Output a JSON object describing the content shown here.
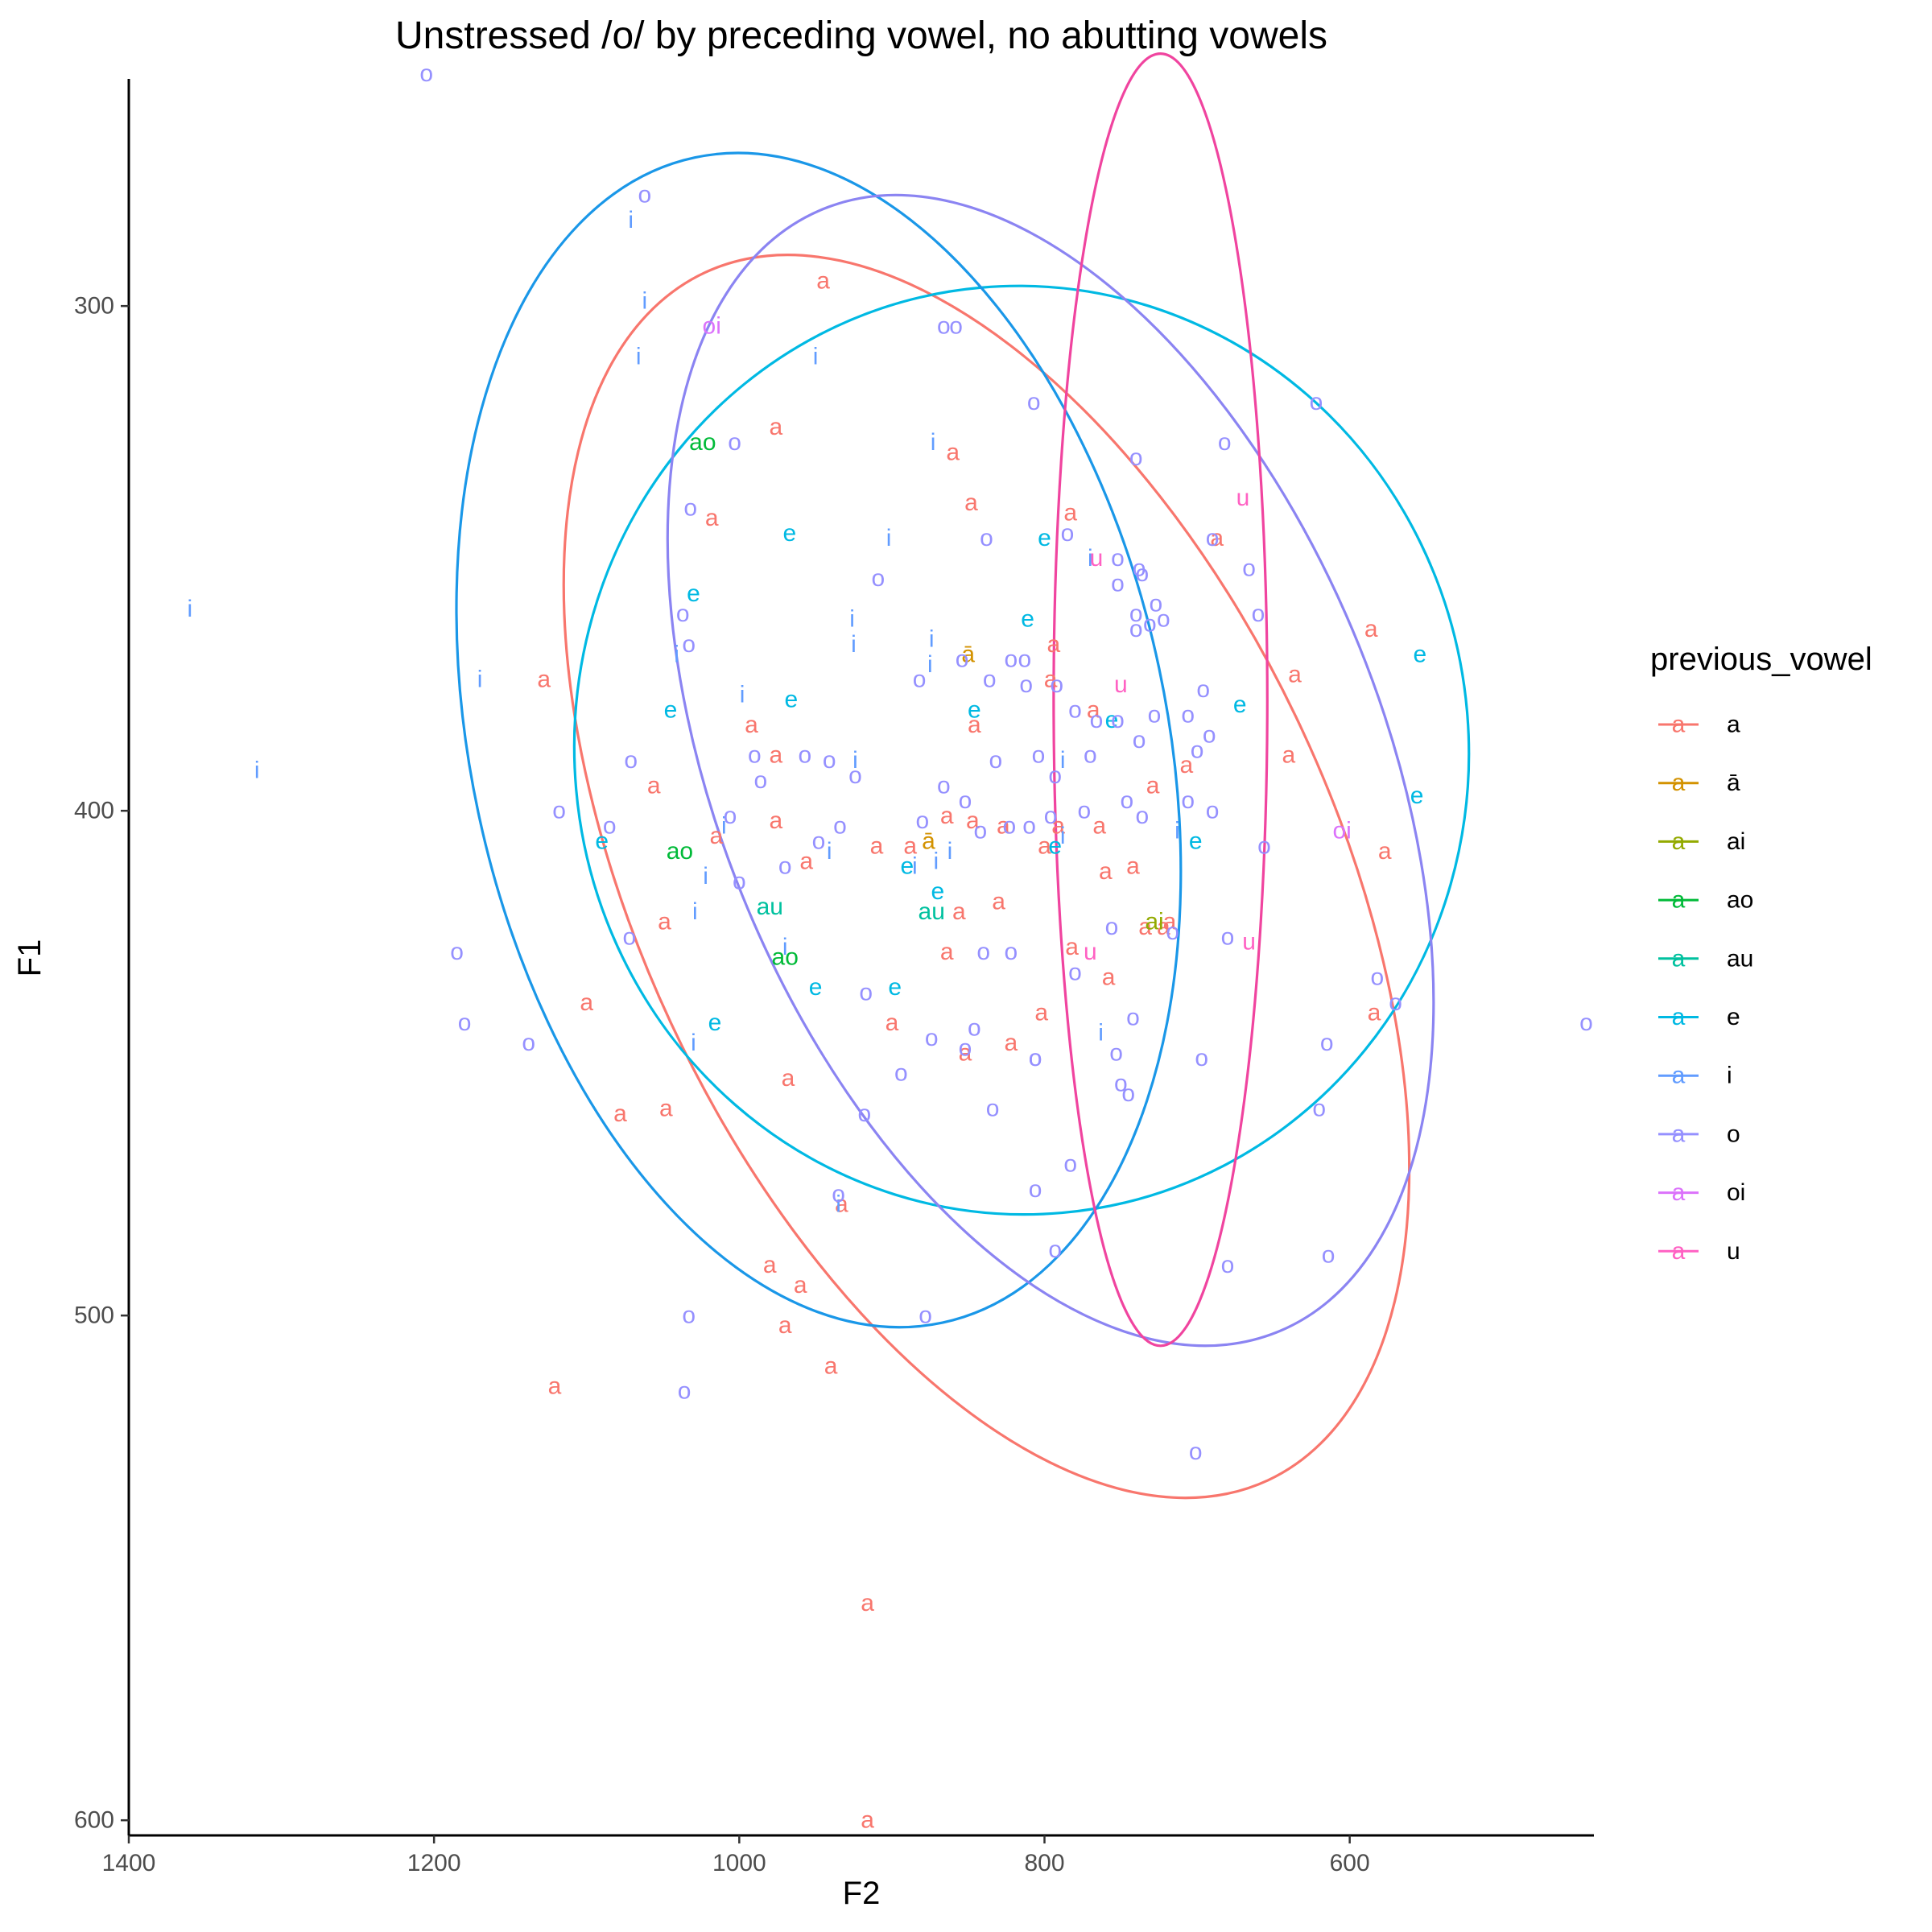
{
  "chart_data": {
    "type": "scatter",
    "title": "Unstressed /o/ by preceding vowel, no abutting vowels",
    "xlabel": "F2",
    "ylabel": "F1",
    "x_reversed": true,
    "y_reversed": true,
    "xlim": [
      1400,
      440
    ],
    "ylim": [
      255,
      603
    ],
    "x_ticks": [
      1400,
      1200,
      1000,
      800,
      600
    ],
    "y_ticks": [
      300,
      400,
      500,
      600
    ],
    "grid": false,
    "legend": {
      "title": "previous_vowel",
      "placement": "right",
      "key_glyph": "a"
    },
    "series": [
      {
        "name": "a",
        "color": "#F8766D",
        "points": [
          [
            945,
            295
          ],
          [
            976,
            324
          ],
          [
            860,
            329
          ],
          [
            1018,
            342
          ],
          [
            848,
            339
          ],
          [
            783,
            341
          ],
          [
            687,
            346
          ],
          [
            794,
            367
          ],
          [
            586,
            364
          ],
          [
            636,
            373
          ],
          [
            1128,
            374
          ],
          [
            796,
            374
          ],
          [
            768,
            380
          ],
          [
            846,
            383
          ],
          [
            992,
            383
          ],
          [
            976,
            389
          ],
          [
            707,
            391
          ],
          [
            640,
            389
          ],
          [
            1056,
            395
          ],
          [
            729,
            395
          ],
          [
            976,
            402
          ],
          [
            847,
            402
          ],
          [
            764,
            403
          ],
          [
            1015,
            405
          ],
          [
            827,
            403
          ],
          [
            910,
            407
          ],
          [
            888,
            407
          ],
          [
            800,
            407
          ],
          [
            791,
            403
          ],
          [
            956,
            410
          ],
          [
            760,
            412
          ],
          [
            742,
            411
          ],
          [
            864,
            401
          ],
          [
            856,
            420
          ],
          [
            830,
            418
          ],
          [
            1049,
            422
          ],
          [
            864,
            428
          ],
          [
            782,
            427
          ],
          [
            758,
            433
          ],
          [
            1100,
            438
          ],
          [
            802,
            440
          ],
          [
            584,
            440
          ],
          [
            900,
            442
          ],
          [
            822,
            446
          ],
          [
            852,
            448
          ],
          [
            968,
            453
          ],
          [
            1078,
            460
          ],
          [
            1048,
            459
          ],
          [
            933,
            478
          ],
          [
            980,
            490
          ],
          [
            960,
            494
          ],
          [
            970,
            502
          ],
          [
            1121,
            514
          ],
          [
            940,
            510
          ],
          [
            916,
            557
          ],
          [
            916,
            600
          ],
          [
            577,
            408
          ],
          [
            734,
            423
          ],
          [
            718,
            422
          ],
          [
            722,
            423
          ]
        ]
      },
      {
        "name": "ā",
        "color": "#D39200",
        "points": [
          [
            876,
            406
          ],
          [
            850,
            369
          ]
        ]
      },
      {
        "name": "ai",
        "color": "#93AA00",
        "points": [
          [
            728,
            422
          ]
        ]
      },
      {
        "name": "ao",
        "color": "#00BA38",
        "points": [
          [
            1024,
            327
          ],
          [
            1039,
            408
          ],
          [
            970,
            429
          ]
        ]
      },
      {
        "name": "au",
        "color": "#00C19F",
        "points": [
          [
            980,
            419
          ],
          [
            874,
            420
          ]
        ]
      },
      {
        "name": "e",
        "color": "#00B9E3",
        "points": [
          [
            967,
            345
          ],
          [
            800,
            346
          ],
          [
            1030,
            357
          ],
          [
            811,
            362
          ],
          [
            966,
            378
          ],
          [
            1045,
            380
          ],
          [
            846,
            380
          ],
          [
            672,
            379
          ],
          [
            756,
            382
          ],
          [
            554,
            369
          ],
          [
            556,
            397
          ],
          [
            1090,
            406
          ],
          [
            701,
            406
          ],
          [
            793,
            407
          ],
          [
            890,
            411
          ],
          [
            870,
            416
          ],
          [
            950,
            435
          ],
          [
            898,
            435
          ],
          [
            1016,
            442
          ]
        ]
      },
      {
        "name": "i",
        "color": "#619CFF",
        "points": [
          [
            1071,
            283
          ],
          [
            1062,
            299
          ],
          [
            1066,
            310
          ],
          [
            950,
            310
          ],
          [
            873,
            327
          ],
          [
            902,
            346
          ],
          [
            770,
            350
          ],
          [
            1360,
            360
          ],
          [
            926,
            362
          ],
          [
            925,
            367
          ],
          [
            874,
            366
          ],
          [
            875,
            371
          ],
          [
            1041,
            369
          ],
          [
            1170,
            374
          ],
          [
            998,
            377
          ],
          [
            924,
            390
          ],
          [
            1316,
            392
          ],
          [
            788,
            390
          ],
          [
            1010,
            403
          ],
          [
            862,
            408
          ],
          [
            941,
            408
          ],
          [
            1022,
            413
          ],
          [
            885,
            411
          ],
          [
            871,
            410
          ],
          [
            1029,
            420
          ],
          [
            970,
            427
          ],
          [
            1030,
            446
          ],
          [
            935,
            478
          ],
          [
            763,
            444
          ],
          [
            788,
            405
          ],
          [
            713,
            404
          ]
        ]
      },
      {
        "name": "o",
        "color": "#9590FF",
        "points": [
          [
            1205,
            254
          ],
          [
            1062,
            278
          ],
          [
            866,
            304
          ],
          [
            858,
            304
          ],
          [
            807,
            319
          ],
          [
            622,
            319
          ],
          [
            1003,
            327
          ],
          [
            740,
            330
          ],
          [
            682,
            327
          ],
          [
            1032,
            340
          ],
          [
            838,
            346
          ],
          [
            690,
            346
          ],
          [
            785,
            345
          ],
          [
            752,
            350
          ],
          [
            738,
            352
          ],
          [
            666,
            352
          ],
          [
            909,
            354
          ],
          [
            752,
            355
          ],
          [
            736,
            353
          ],
          [
            1033,
            367
          ],
          [
            660,
            361
          ],
          [
            1037,
            361
          ],
          [
            740,
            364
          ],
          [
            727,
            359
          ],
          [
            722,
            362
          ],
          [
            740,
            361
          ],
          [
            731,
            363
          ],
          [
            780,
            380
          ],
          [
            766,
            382
          ],
          [
            752,
            382
          ],
          [
            728,
            381
          ],
          [
            706,
            381
          ],
          [
            696,
            376
          ],
          [
            882,
            374
          ],
          [
            854,
            370
          ],
          [
            822,
            370
          ],
          [
            813,
            370
          ],
          [
            836,
            374
          ],
          [
            792,
            375
          ],
          [
            812,
            375
          ],
          [
            990,
            389
          ],
          [
            957,
            389
          ],
          [
            941,
            390
          ],
          [
            1071,
            390
          ],
          [
            804,
            389
          ],
          [
            832,
            390
          ],
          [
            770,
            389
          ],
          [
            738,
            386
          ],
          [
            700,
            388
          ],
          [
            692,
            385
          ],
          [
            924,
            393
          ],
          [
            986,
            394
          ],
          [
            866,
            395
          ],
          [
            852,
            398
          ],
          [
            793,
            393
          ],
          [
            1118,
            400
          ],
          [
            746,
            398
          ],
          [
            706,
            398
          ],
          [
            1085,
            403
          ],
          [
            934,
            403
          ],
          [
            880,
            402
          ],
          [
            948,
            406
          ],
          [
            842,
            404
          ],
          [
            823,
            403
          ],
          [
            810,
            403
          ],
          [
            774,
            400
          ],
          [
            796,
            401
          ],
          [
            736,
            401
          ],
          [
            690,
            400
          ],
          [
            656,
            407
          ],
          [
            1006,
            401
          ],
          [
            970,
            411
          ],
          [
            1072,
            425
          ],
          [
            840,
            428
          ],
          [
            822,
            428
          ],
          [
            756,
            423
          ],
          [
            716,
            424
          ],
          [
            680,
            425
          ],
          [
            1185,
            428
          ],
          [
            1180,
            442
          ],
          [
            1138,
            446
          ],
          [
            917,
            436
          ],
          [
            874,
            445
          ],
          [
            846,
            443
          ],
          [
            742,
            441
          ],
          [
            780,
            432
          ],
          [
            615,
            446
          ],
          [
            1000,
            414
          ],
          [
            894,
            452
          ],
          [
            852,
            447
          ],
          [
            806,
            449
          ],
          [
            753,
            448
          ],
          [
            806,
            449
          ],
          [
            697,
            449
          ],
          [
            750,
            454
          ],
          [
            745,
            456
          ],
          [
            918,
            460
          ],
          [
            834,
            459
          ],
          [
            783,
            470
          ],
          [
            806,
            475
          ],
          [
            935,
            476
          ],
          [
            793,
            487
          ],
          [
            680,
            490
          ],
          [
            614,
            488
          ],
          [
            1033,
            500
          ],
          [
            878,
            500
          ],
          [
            1036,
            515
          ],
          [
            701,
            527
          ],
          [
            582,
            433
          ],
          [
            445,
            442
          ],
          [
            620,
            459
          ],
          [
            570,
            438
          ]
        ]
      },
      {
        "name": "oi",
        "color": "#DB72FB",
        "points": [
          [
            1018,
            304
          ],
          [
            605,
            404
          ]
        ]
      },
      {
        "name": "u",
        "color": "#FF61C3",
        "points": [
          [
            670,
            338
          ],
          [
            766,
            350
          ],
          [
            750,
            375
          ],
          [
            770,
            428
          ],
          [
            666,
            426
          ]
        ]
      }
    ],
    "ellipses": [
      {
        "series": "a",
        "color": "#F8766D",
        "cx": 838,
        "cy": 413,
        "rx": 228,
        "ry": 132,
        "angle_deg": -25
      },
      {
        "series": "e",
        "color": "#00B9E3",
        "cx": 815,
        "cy": 388,
        "rx": 293,
        "ry": 92,
        "angle_deg": -5
      },
      {
        "series": "i",
        "color": "#1A97E8",
        "cx": 948,
        "cy": 386,
        "rx": 228,
        "ry": 118,
        "angle_deg": -12
      },
      {
        "series": "o",
        "color": "#8B84F2",
        "cx": 796,
        "cy": 392,
        "rx": 218,
        "ry": 120,
        "angle_deg": -22
      },
      {
        "series": "u",
        "color": "#F0449F",
        "cx": 724,
        "cy": 378,
        "rx": 70,
        "ry": 128,
        "angle_deg": 0
      }
    ]
  }
}
